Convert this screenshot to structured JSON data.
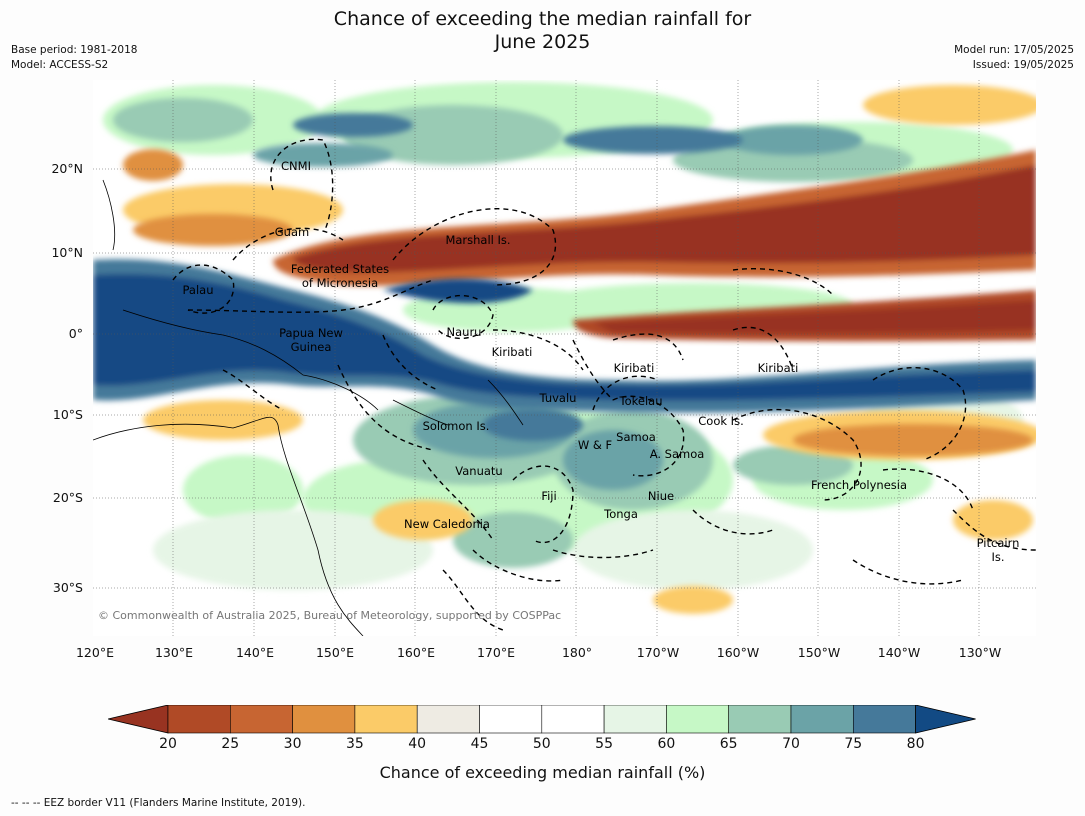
{
  "title_line1": "Chance of exceeding the median rainfall for",
  "title_line2": "June 2025",
  "base_period": "Base period: 1981-2018",
  "model": "Model: ACCESS-S2",
  "model_run": "Model run: 17/05/2025",
  "issued": "Issued: 19/05/2025",
  "lat_ticks": [
    "20°N",
    "10°N",
    "0°",
    "10°S",
    "20°S",
    "30°S"
  ],
  "lon_ticks": [
    "120°E",
    "130°E",
    "140°E",
    "150°E",
    "160°E",
    "170°E",
    "180°",
    "170°W",
    "160°W",
    "150°W",
    "140°W",
    "130°W"
  ],
  "regions": [
    {
      "label": "CNMI"
    },
    {
      "label": "Guam"
    },
    {
      "label": "Marshall Is."
    },
    {
      "label": "Federated States"
    },
    {
      "label": "of Micronesia"
    },
    {
      "label": "Palau"
    },
    {
      "label": "Papua New"
    },
    {
      "label": "Guinea"
    },
    {
      "label": "Nauru"
    },
    {
      "label": "Kiribati"
    },
    {
      "label": "Kiribati"
    },
    {
      "label": "Kiribati"
    },
    {
      "label": "Tuvalu"
    },
    {
      "label": "Tokelau"
    },
    {
      "label": "Cook Is."
    },
    {
      "label": "Solomon Is."
    },
    {
      "label": "W & F"
    },
    {
      "label": "Samoa"
    },
    {
      "label": "A. Samoa"
    },
    {
      "label": "Vanuatu"
    },
    {
      "label": "Fiji"
    },
    {
      "label": "Niue"
    },
    {
      "label": "Tonga"
    },
    {
      "label": "French Polynesia"
    },
    {
      "label": "New Caledonia"
    },
    {
      "label": "Pitcairn"
    },
    {
      "label": "Is."
    }
  ],
  "copyright": "© Commonwealth of Australia 2025, Bureau of Meteorology, supported by COSPPac",
  "colorbar": {
    "ticks": [
      "20",
      "25",
      "30",
      "35",
      "40",
      "45",
      "50",
      "55",
      "60",
      "65",
      "70",
      "75",
      "80"
    ],
    "colors": [
      "#983321",
      "#b04a26",
      "#c76532",
      "#e0903f",
      "#fbcb68",
      "#eeebe3",
      "#ffffff",
      "#ffffff",
      "#e6f5e6",
      "#c6f8c6",
      "#99cbb4",
      "#6ba3a7",
      "#45799a",
      "#124a84"
    ],
    "label": "Chance of exceeding median rainfall (%)"
  },
  "footnote": "--  --  -- EEZ border V11 (Flanders Marine Institute, 2019)."
}
